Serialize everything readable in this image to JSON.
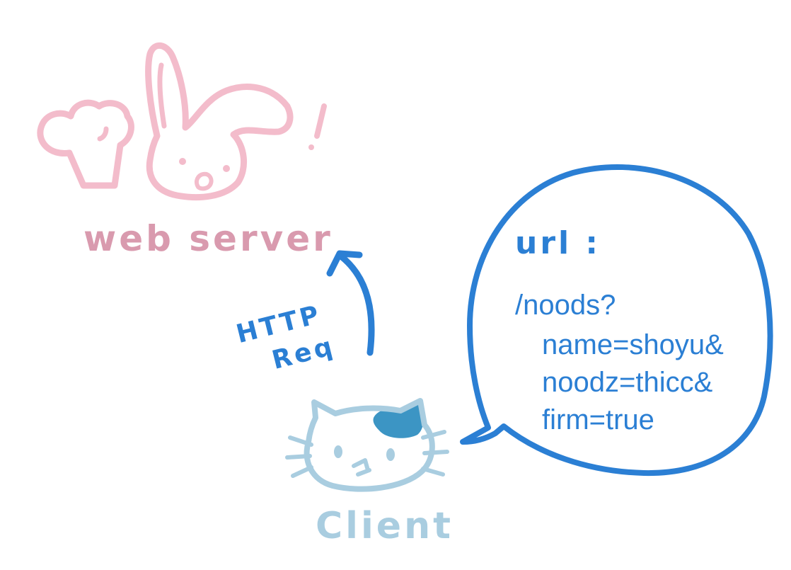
{
  "server": {
    "label": "web server",
    "color": "#f3bccb",
    "label_color": "#d99aae"
  },
  "client": {
    "label": "Client",
    "color": "#a9cde0",
    "patch_color": "#3c95c4"
  },
  "request": {
    "label_line1": "HTTP",
    "label_line2": "Req",
    "color": "#2b7fd4"
  },
  "bubble": {
    "heading": "url :",
    "lines": [
      "/noods?",
      "name=shoyu&",
      "noodz=thicc&",
      "firm=true"
    ],
    "color": "#2b7fd4"
  }
}
